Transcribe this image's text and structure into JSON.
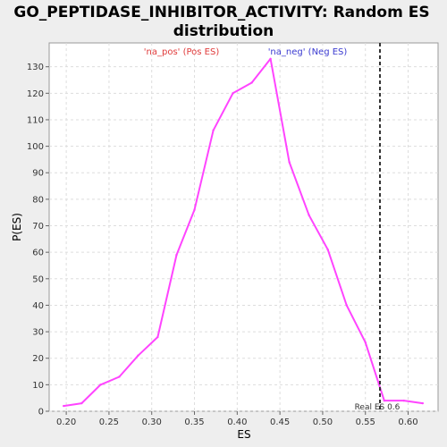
{
  "title_line1": "GO_PEPTIDASE_INHIBITOR_ACTIVITY: Random ES",
  "title_line2": "distribution",
  "pos_label": "'na_pos' (Pos ES)",
  "neg_label": "'na_neg' (Neg ES)",
  "colors": {
    "background": "#eeeeee",
    "plot_background": "#ffffff",
    "curve": "#ff44ff",
    "grid": "#dddddd",
    "real_es_line": "#333333",
    "pos_label": "#e03a3a",
    "neg_label": "#3a3ad0"
  },
  "chart_data": {
    "type": "line",
    "title": "GO_PEPTIDASE_INHIBITOR_ACTIVITY: Random ES distribution",
    "xlabel": "ES",
    "ylabel": "P(ES)",
    "xlim": [
      0.18,
      0.635
    ],
    "ylim": [
      0,
      139
    ],
    "grid": true,
    "x_ticks": [
      0.2,
      0.25,
      0.3,
      0.35,
      0.4,
      0.45,
      0.5,
      0.55,
      0.6
    ],
    "x_tick_labels": [
      "0.20",
      "0.25",
      "0.30",
      "0.35",
      "0.40",
      "0.45",
      "0.50",
      "0.55",
      "0.60"
    ],
    "y_ticks": [
      0,
      10,
      20,
      30,
      40,
      50,
      60,
      70,
      80,
      90,
      100,
      110,
      120,
      130
    ],
    "y_tick_labels": [
      "0",
      "10",
      "20",
      "30",
      "40",
      "50",
      "60",
      "70",
      "80",
      "90",
      "100",
      "110",
      "120",
      "130"
    ],
    "series": [
      {
        "x": [
          0.197,
          0.218,
          0.24,
          0.262,
          0.284,
          0.307,
          0.329,
          0.35,
          0.372,
          0.395,
          0.417,
          0.439,
          0.461,
          0.484,
          0.506,
          0.528,
          0.55,
          0.572,
          0.595,
          0.617
        ],
        "y": [
          2,
          3,
          10,
          13,
          21,
          28,
          59,
          76,
          106,
          120,
          124,
          133,
          94,
          74,
          61,
          40,
          26,
          4,
          4,
          3
        ]
      }
    ],
    "real_es": 0.567,
    "real_es_label": "Real ES 0.6"
  }
}
